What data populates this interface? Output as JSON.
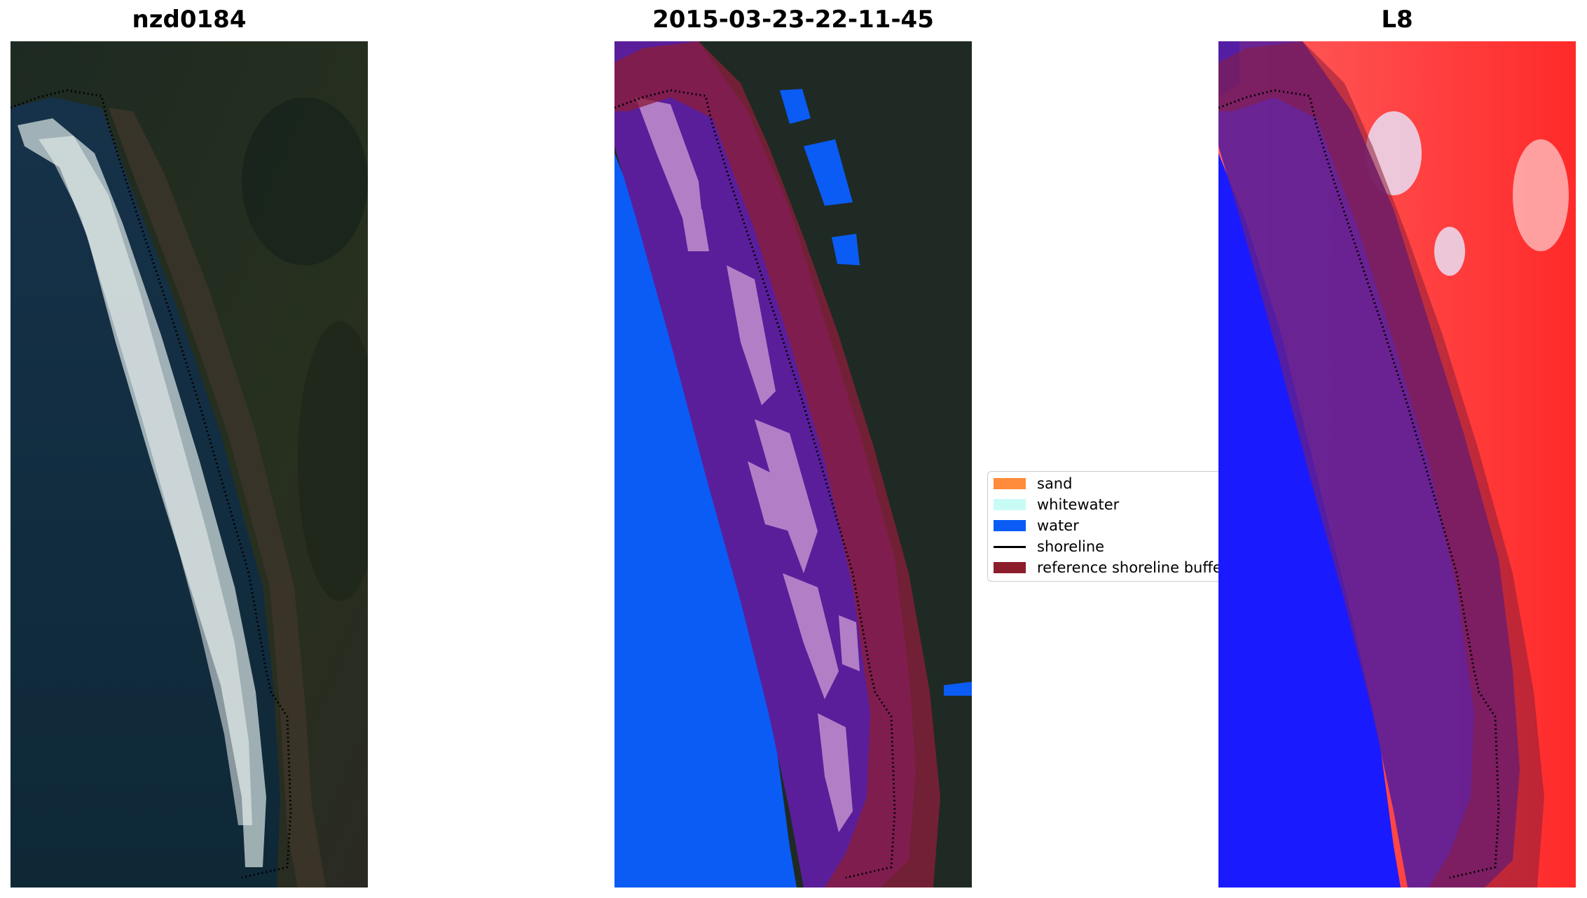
{
  "panels": {
    "left_title": "nzd0184",
    "middle_title": "2015-03-23-22-11-45",
    "right_title": "L8"
  },
  "legend": {
    "items": [
      {
        "label": "sand",
        "color": "#ff8c3a",
        "kind": "patch"
      },
      {
        "label": "whitewater",
        "color": "#c8fbf6",
        "kind": "patch"
      },
      {
        "label": "water",
        "color": "#0a5cf5",
        "kind": "patch"
      },
      {
        "label": "shoreline",
        "color": "#000000",
        "kind": "line"
      },
      {
        "label": "reference shoreline buffer",
        "color": "#8b1e2a",
        "kind": "patch"
      }
    ]
  },
  "colors": {
    "land_dark": "#1f2a24",
    "ocean_dark": "#0f2a38",
    "surf_white": "#dfe7e6",
    "water_blue": "#0a5cf5",
    "class_purple": "#5a1e9a",
    "sand_pink": "#b27fc6",
    "buffer_red": "#8b1e3a",
    "index_red": "#ff2a2a",
    "index_blue": "#1a1aff"
  }
}
